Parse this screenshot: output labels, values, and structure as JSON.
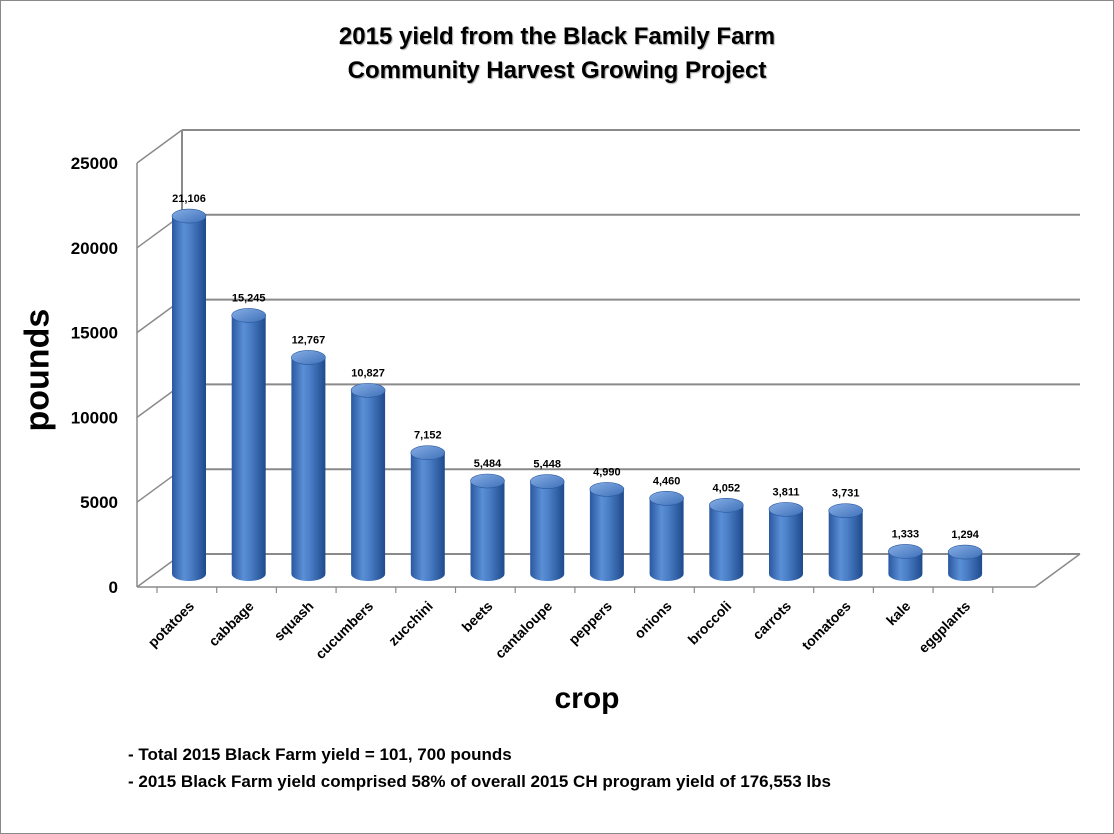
{
  "chart_data": {
    "type": "bar",
    "title": [
      "2015 yield from the Black Family Farm",
      "Community Harvest Growing Project"
    ],
    "xlabel": "crop",
    "ylabel": "pounds",
    "ylim": [
      0,
      25000
    ],
    "yticks": [
      "0",
      "5000",
      "10000",
      "15000",
      "20000",
      "25000"
    ],
    "grid": true,
    "legend": "none",
    "bar_color": "#4a7ec6",
    "categories": [
      "potatoes",
      "cabbage",
      "squash",
      "cucumbers",
      "zucchini",
      "beets",
      "cantaloupe",
      "peppers",
      "onions",
      "broccoli",
      "carrots",
      "tomatoes",
      "kale",
      "eggplants"
    ],
    "values": [
      21106,
      15245,
      12767,
      10827,
      7152,
      5484,
      5448,
      4990,
      4460,
      4052,
      3811,
      3731,
      1333,
      1294
    ],
    "data_labels": [
      "21,106",
      "15,245",
      "12,767",
      "10,827",
      "7,152",
      "5,484",
      "5,448",
      "4,990",
      "4,460",
      "4,052",
      "3,811",
      "3,731",
      "1,333",
      "1,294"
    ],
    "notes": [
      "- Total 2015 Black Farm yield = 101, 700 pounds",
      "- 2015 Black Farm yield comprised 58% of overall 2015 CH program yield of 176,553 lbs"
    ]
  }
}
